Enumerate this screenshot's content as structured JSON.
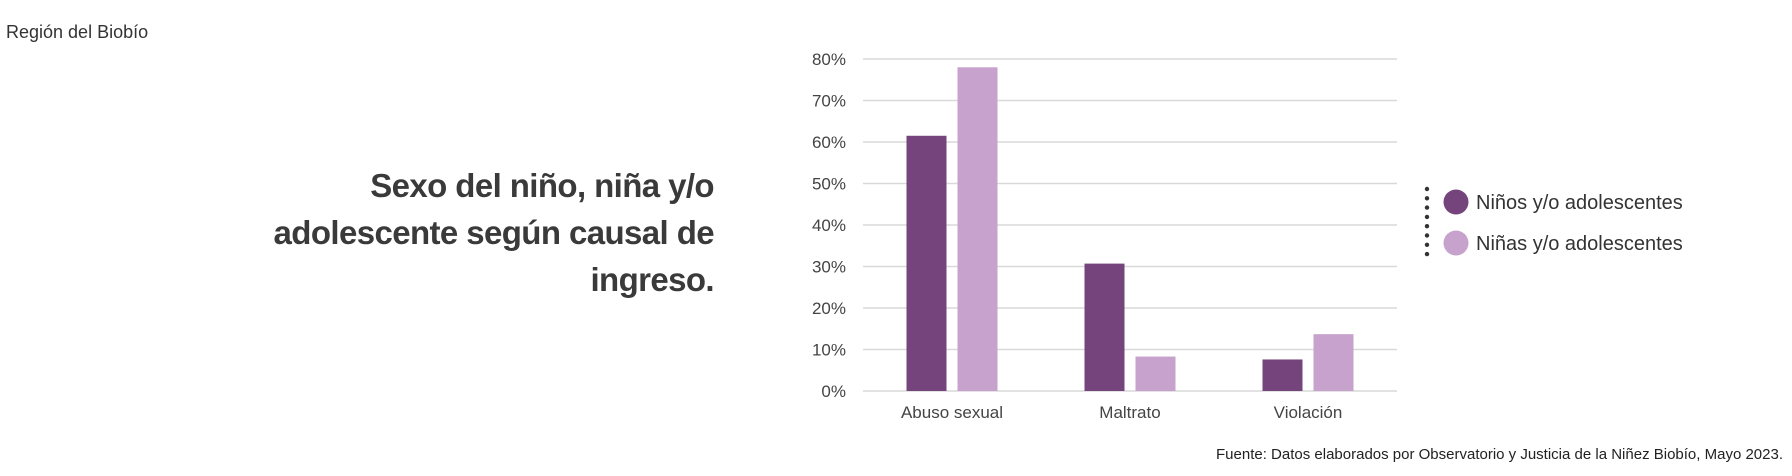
{
  "header": {
    "region": "Región del Biobío"
  },
  "title_lines": [
    "Sexo del niño, niña y/o",
    "adolescente según causal de",
    "ingreso."
  ],
  "footer": "Fuente: Datos elaborados por Observatorio y Justicia de la Niñez Biobío, Mayo 2023.",
  "chart_data": {
    "type": "bar",
    "title": "Sexo del niño, niña y/o adolescente según causal de ingreso.",
    "categories": [
      "Abuso sexual",
      "Maltrato",
      "Violación"
    ],
    "series": [
      {
        "name": "Niños y/o adolescentes",
        "color": "#76447c",
        "values": [
          61.5,
          30.7,
          7.6
        ]
      },
      {
        "name": "Niñas y/o adolescentes",
        "color": "#c7a2cd",
        "values": [
          78.0,
          8.3,
          13.7
        ]
      }
    ],
    "yticks": [
      "0%",
      "10%",
      "20%",
      "30%",
      "40%",
      "50%",
      "60%",
      "70%",
      "80%"
    ],
    "ylim": [
      0,
      80
    ],
    "xlabel": "",
    "ylabel": "",
    "grid": true,
    "legend": "right"
  }
}
